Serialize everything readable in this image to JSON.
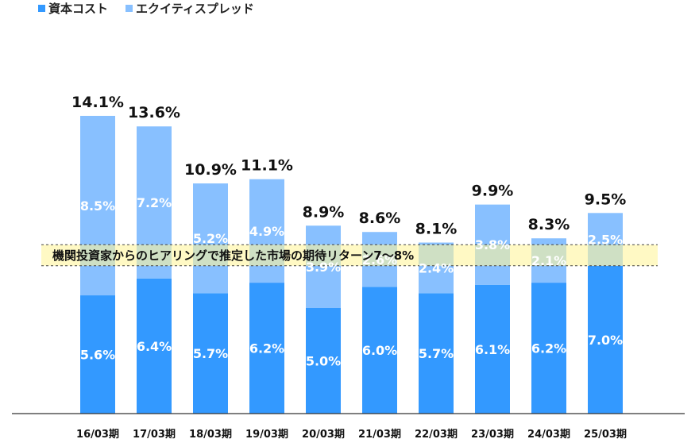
{
  "chart_data": {
    "type": "bar",
    "stacked": true,
    "categories": [
      "16/03期",
      "17/03期",
      "18/03期",
      "19/03期",
      "20/03期",
      "21/03期",
      "22/03期",
      "23/03期",
      "24/03期",
      "25/03期"
    ],
    "series": [
      {
        "name": "資本コスト",
        "color": "#3399ff",
        "values": [
          5.6,
          6.4,
          5.7,
          6.2,
          5.0,
          6.0,
          5.7,
          6.1,
          6.2,
          7.0
        ],
        "labels": [
          "5.6%",
          "6.4%",
          "5.7%",
          "6.2%",
          "5.0%",
          "6.0%",
          "5.7%",
          "6.1%",
          "6.2%",
          "7.0%"
        ]
      },
      {
        "name": "エクイティスプレッド",
        "color": "#88c0ff",
        "values": [
          8.5,
          7.2,
          5.2,
          4.9,
          3.9,
          2.6,
          2.4,
          3.8,
          2.1,
          2.5
        ],
        "labels": [
          "8.5%",
          "7.2%",
          "5.2%",
          "4.9%",
          "3.9%",
          "2.6%",
          "2.4%",
          "3.8%",
          "2.1%",
          "2.5%"
        ]
      }
    ],
    "totals": [
      14.1,
      13.6,
      10.9,
      11.1,
      8.9,
      8.6,
      8.1,
      9.9,
      8.3,
      9.5
    ],
    "total_labels": [
      "14.1%",
      "13.6%",
      "10.9%",
      "11.1%",
      "8.9%",
      "8.6%",
      "8.1%",
      "9.9%",
      "8.3%",
      "9.5%"
    ],
    "ylim": [
      0,
      15
    ],
    "band": {
      "label": "機関投資家からのヒアリングで推定した市場の期待リターン7～8%",
      "from": 7,
      "to": 8,
      "color": "#fff59d"
    },
    "grid": false,
    "legend_position": "top-left"
  }
}
